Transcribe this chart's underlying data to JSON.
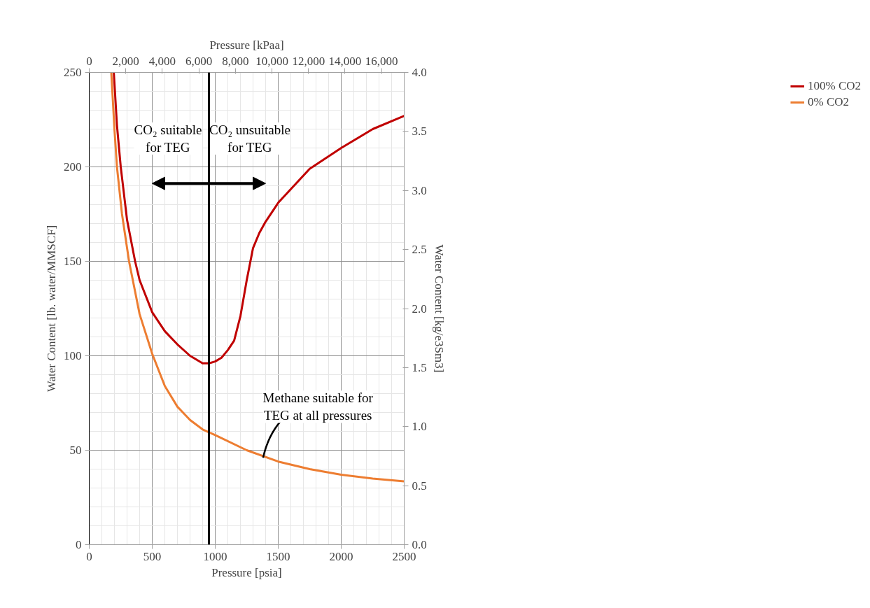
{
  "chart_data": {
    "type": "line",
    "xlabel": "Pressure [psia]",
    "ylabel": "Water Content [lb. water/MMSCF]",
    "y2label": "Water Content [kg/e3Sm3]",
    "x2label": "Pressure [kPaa]",
    "xlim": [
      0,
      2500
    ],
    "xticks": [
      0,
      500,
      1000,
      1500,
      2000,
      2500
    ],
    "ylim": [
      0,
      250
    ],
    "yticks": [
      0,
      50,
      100,
      150,
      200,
      250
    ],
    "y2lim": [
      0,
      4.0
    ],
    "y2ticks": [
      {
        "value": 0,
        "label": "0.0"
      },
      {
        "value": 0.5,
        "label": "0.5"
      },
      {
        "value": 1,
        "label": "1.0"
      },
      {
        "value": 1.5,
        "label": "1.5"
      },
      {
        "value": 2,
        "label": "2.0"
      },
      {
        "value": 2.5,
        "label": "2.5"
      },
      {
        "value": 3,
        "label": "3.0"
      },
      {
        "value": 3.5,
        "label": "3.5"
      },
      {
        "value": 4,
        "label": "4.0"
      }
    ],
    "x2lim": [
      0,
      17237
    ],
    "x2ticks": [
      0,
      {
        "value": 2000,
        "label": "2,000"
      },
      {
        "value": 4000,
        "label": "4,000"
      },
      {
        "value": 6000,
        "label": "6,000"
      },
      {
        "value": 8000,
        "label": "8,000"
      },
      {
        "value": 10000,
        "label": "10,000"
      },
      {
        "value": 12000,
        "label": "12,000"
      },
      {
        "value": 14000,
        "label": "14,000"
      },
      {
        "value": 16000,
        "label": "16,000"
      }
    ],
    "grid": true,
    "legend": "right",
    "marker": "none",
    "line_style": "solid",
    "series": [
      {
        "name": "100% CO2",
        "color": "#c00000",
        "x": [
          195,
          220,
          250,
          300,
          364,
          400,
          500,
          600,
          700,
          800,
          900,
          950,
          1000,
          1050,
          1100,
          1150,
          1200,
          1250,
          1300,
          1350,
          1400,
          1500,
          1750,
          2000,
          2250,
          2500
        ],
        "values": [
          250,
          222,
          200,
          172,
          150,
          140,
          123,
          113,
          106,
          100,
          96,
          96,
          97,
          99,
          103,
          108,
          121,
          140,
          157,
          165,
          171,
          181,
          199,
          210,
          220,
          227
        ]
      },
      {
        "name": "0% CO2",
        "color": "#ed7d31",
        "x": [
          175,
          200,
          220,
          260,
          316,
          400,
          500,
          600,
          700,
          800,
          900,
          1000,
          1250,
          1500,
          1750,
          2000,
          2250,
          2500
        ],
        "values": [
          250,
          220,
          200,
          175,
          150,
          122,
          101,
          84,
          73,
          66,
          61,
          58,
          50,
          44,
          40,
          37,
          35,
          33.5
        ]
      }
    ],
    "ref_lines": [
      {
        "axis": "x",
        "value": 950,
        "color": "#000000"
      }
    ],
    "annotations": [
      "CO₂ suitable\nfor TEG",
      "CO₂ unsuitable\nfor TEG",
      {
        "text": "Methane suitable for\nTEG at all pressures",
        "x": 1380,
        "y": 46
      }
    ]
  }
}
